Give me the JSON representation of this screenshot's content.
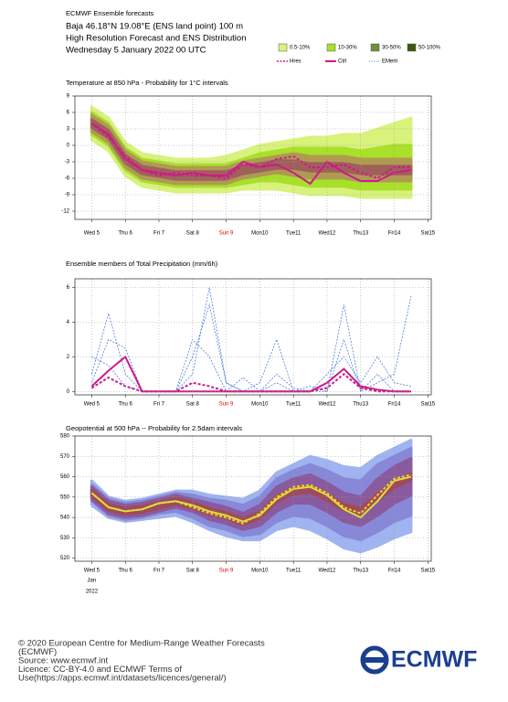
{
  "header": {
    "source": "ECMWF Ensemble forecasts",
    "location": "Baja 46.18°N 19.08°E (ENS land point) 100 m",
    "subtitle": "High Resolution Forecast and ENS Distribution",
    "date": "Wednesday 5 January 2022 00 UTC"
  },
  "legend": [
    {
      "label": "0.5-10%",
      "color": "#d8f27c",
      "kind": "box"
    },
    {
      "label": "10-30%",
      "color": "#a8e02a",
      "kind": "box"
    },
    {
      "label": "30-50%",
      "color": "#6f8f3a",
      "kind": "box"
    },
    {
      "label": "50-100%",
      "color": "#3d5a0c",
      "kind": "box"
    },
    {
      "label": "Hres",
      "color": "#cc1a8a",
      "kind": "dash"
    },
    {
      "label": "Ctrl",
      "color": "#cc1a8a",
      "kind": "solid"
    },
    {
      "label": "EMem",
      "color": "#8aa6e0",
      "kind": "dot"
    }
  ],
  "chart_data": [
    {
      "type": "line",
      "title": "Temperature at 850 hPa - Probability for 1°C intervals",
      "x": [
        0,
        0.5,
        1,
        1.5,
        2,
        2.5,
        3,
        3.5,
        4,
        4.5,
        5,
        5.5,
        6,
        6.5,
        7,
        7.5,
        8,
        8.5,
        9,
        9.5
      ],
      "xlim": [
        -0.5,
        10.1
      ],
      "xticks": [
        {
          "value": 0,
          "label": "Wed 5"
        },
        {
          "value": 1,
          "label": "Thu 6"
        },
        {
          "value": 2,
          "label": "Fri 7"
        },
        {
          "value": 3,
          "label": "Sat 8"
        },
        {
          "value": 4,
          "label": "Sun 9",
          "color": "#e00000"
        },
        {
          "value": 5,
          "label": "Mon10"
        },
        {
          "value": 6,
          "label": "Tue11"
        },
        {
          "value": 7,
          "label": "Wed12"
        },
        {
          "value": 8,
          "label": "Thu13"
        },
        {
          "value": 9,
          "label": "Fri14"
        },
        {
          "value": 10,
          "label": "Sat15"
        }
      ],
      "ylim": [
        -13.5,
        9
      ],
      "yticks": [
        9,
        6,
        3,
        0,
        -3,
        -6,
        -9,
        -12
      ],
      "grid": true,
      "bands": [
        {
          "name": "0.5-10%",
          "color": "#d8f27c",
          "low": [
            1,
            -1,
            -5.5,
            -7.5,
            -8,
            -8.5,
            -8.5,
            -8.5,
            -8.5,
            -8,
            -8,
            -8,
            -8.5,
            -9,
            -9,
            -9,
            -9.5,
            -9.5,
            -9.5,
            -9.5
          ],
          "high": [
            7,
            5,
            0.5,
            -1.5,
            -2,
            -2.5,
            -2.5,
            -2.5,
            -2,
            -1,
            0,
            0.5,
            1,
            1.5,
            1.5,
            2,
            2,
            3,
            4,
            5
          ]
        },
        {
          "name": "10-30%",
          "color": "#a8e02a",
          "low": [
            2,
            0,
            -4.5,
            -6.5,
            -7,
            -7.5,
            -7.5,
            -7.5,
            -7.5,
            -7,
            -6.5,
            -6.5,
            -7,
            -7.5,
            -7.5,
            -7.5,
            -8,
            -8,
            -8,
            -8
          ],
          "high": [
            6,
            4,
            -0.5,
            -2.5,
            -3,
            -3.5,
            -3.5,
            -3.5,
            -3.5,
            -2.5,
            -1.5,
            -1,
            -0.5,
            -0.5,
            -0.5,
            -0.5,
            -1,
            -0.5,
            0,
            0
          ]
        },
        {
          "name": "30-50%",
          "color": "#b09a50",
          "low": [
            2.5,
            0.5,
            -4,
            -6,
            -6.5,
            -7,
            -7,
            -7,
            -7,
            -6,
            -5.5,
            -5,
            -5.5,
            -6,
            -6,
            -6,
            -6.5,
            -6.5,
            -6.5,
            -6.5
          ],
          "high": [
            5.5,
            3.5,
            -1,
            -3,
            -3.5,
            -4,
            -4,
            -4,
            -4,
            -3,
            -2.5,
            -2,
            -1.5,
            -2,
            -2,
            -2,
            -2.5,
            -2.5,
            -2.5,
            -2.5
          ]
        },
        {
          "name": "50-100%",
          "color": "#a0605a",
          "low": [
            3.3,
            1.3,
            -3.2,
            -5.2,
            -5.7,
            -6.2,
            -6.2,
            -6.2,
            -6.2,
            -5.2,
            -4.7,
            -4.2,
            -4.2,
            -4.7,
            -4.7,
            -4.7,
            -5.2,
            -5.2,
            -5.2,
            -5.2
          ],
          "high": [
            4.7,
            2.7,
            -1.8,
            -3.8,
            -4.3,
            -4.8,
            -4.8,
            -4.8,
            -4.8,
            -3.8,
            -3.3,
            -2.8,
            -2.8,
            -3.3,
            -3.3,
            -3.3,
            -3.8,
            -3.8,
            -3.8,
            -3.8
          ]
        }
      ],
      "series": [
        {
          "name": "Hres",
          "color": "#cc1a8a",
          "dash": true,
          "values": [
            4,
            1.5,
            -2,
            -4.5,
            -5.5,
            -5,
            -5.5,
            -5.5,
            -6,
            -3.5,
            -4,
            -2.5,
            -2,
            -4,
            -4,
            -3.5,
            -5,
            -6,
            -4,
            -4
          ]
        },
        {
          "name": "Ctrl",
          "color": "#cc1a8a",
          "dash": false,
          "values": [
            4,
            2,
            -2.5,
            -4.5,
            -5,
            -5.5,
            -5,
            -5.5,
            -5.5,
            -3,
            -4,
            -3.5,
            -5,
            -7,
            -3,
            -5,
            -6.5,
            -6.5,
            -5,
            -4.5
          ]
        }
      ]
    },
    {
      "type": "line",
      "title": "Ensemble members of Total Precipitation (mm/6h)",
      "x": [
        0,
        0.5,
        1,
        1.5,
        2,
        2.5,
        3,
        3.5,
        4,
        4.5,
        5,
        5.5,
        6,
        6.5,
        7,
        7.5,
        8,
        8.5,
        9,
        9.5
      ],
      "xlim": [
        -0.5,
        10.1
      ],
      "xticks": [
        {
          "value": 0,
          "label": "Wed 5"
        },
        {
          "value": 1,
          "label": "Thu 6"
        },
        {
          "value": 2,
          "label": "Fri 7"
        },
        {
          "value": 3,
          "label": "Sat 8"
        },
        {
          "value": 4,
          "label": "Sun 9",
          "color": "#e00000"
        },
        {
          "value": 5,
          "label": "Mon10"
        },
        {
          "value": 6,
          "label": "Tue11"
        },
        {
          "value": 7,
          "label": "Wed12"
        },
        {
          "value": 8,
          "label": "Thu13"
        },
        {
          "value": 9,
          "label": "Fri14"
        },
        {
          "value": 10,
          "label": "Sat15"
        }
      ],
      "ylim": [
        -0.2,
        6.5
      ],
      "yticks": [
        6,
        4,
        2,
        0
      ],
      "grid": true,
      "bands": [],
      "series": [
        {
          "name": "EMem",
          "color": "#4a7de0",
          "dash": true,
          "values": [
            1,
            4.5,
            1,
            0,
            0,
            0,
            2,
            5,
            0.5,
            0,
            0.5,
            3,
            0,
            0.3,
            0,
            5,
            0,
            1,
            0,
            0
          ]
        },
        {
          "name": "EMem",
          "color": "#4a7de0",
          "dash": true,
          "values": [
            0.5,
            3,
            2.5,
            0,
            0,
            0,
            1,
            6,
            0.5,
            0,
            0,
            0.5,
            0,
            0,
            1,
            2,
            0.5,
            2,
            0.5,
            0.3
          ]
        },
        {
          "name": "EMem",
          "color": "#4a7de0",
          "dash": true,
          "values": [
            2,
            1.5,
            0.3,
            0,
            0,
            0,
            3,
            2,
            0,
            0.8,
            0,
            1,
            0.2,
            0,
            0,
            3,
            0,
            0.5,
            1,
            5.5
          ]
        },
        {
          "name": "Hres",
          "color": "#cc1a8a",
          "dash": true,
          "values": [
            0.2,
            0.8,
            0.3,
            0,
            0,
            0,
            0.5,
            0.3,
            0,
            0,
            0,
            0,
            0,
            0,
            0.2,
            1,
            0.2,
            0,
            0,
            0
          ]
        },
        {
          "name": "Ctrl",
          "color": "#cc1a8a",
          "dash": false,
          "values": [
            0.3,
            1.2,
            2,
            0,
            0,
            0,
            0,
            0,
            0,
            0,
            0,
            0,
            0,
            0,
            0.5,
            1.3,
            0.3,
            0.1,
            0,
            0
          ]
        }
      ]
    },
    {
      "type": "line",
      "title": "Geopotential at 500 hPa -- Probability for 2.5dam intervals",
      "x": [
        0,
        0.5,
        1,
        1.5,
        2,
        2.5,
        3,
        3.5,
        4,
        4.5,
        5,
        5.5,
        6,
        6.5,
        7,
        7.5,
        8,
        8.5,
        9,
        9.5
      ],
      "xlim": [
        -0.5,
        10.1
      ],
      "xticks": [
        {
          "value": 0,
          "label": "Wed 5"
        },
        {
          "value": 1,
          "label": "Thu 6"
        },
        {
          "value": 2,
          "label": "Fri 7"
        },
        {
          "value": 3,
          "label": "Sat 8"
        },
        {
          "value": 4,
          "label": "Sun 9",
          "color": "#e00000"
        },
        {
          "value": 5,
          "label": "Mon10"
        },
        {
          "value": 6,
          "label": "Tue11"
        },
        {
          "value": 7,
          "label": "Wed12"
        },
        {
          "value": 8,
          "label": "Thu13"
        },
        {
          "value": 9,
          "label": "Fri14"
        },
        {
          "value": 10,
          "label": "Sat15"
        }
      ],
      "date_note": [
        "Jan",
        "2022"
      ],
      "ylim": [
        518.5,
        580
      ],
      "yticks": [
        580,
        570,
        560,
        550,
        540,
        530,
        520
      ],
      "grid": true,
      "bands": [
        {
          "name": "0.5-10%",
          "color": "#9fb4f0",
          "low": [
            546,
            540,
            538,
            539,
            540,
            541,
            538,
            534,
            531,
            529,
            529,
            534,
            536,
            534,
            530,
            525,
            523,
            526,
            530,
            533
          ],
          "high": [
            558,
            550,
            548,
            549,
            551,
            553,
            553,
            551,
            550,
            549,
            553,
            562,
            566,
            570,
            568,
            565,
            564,
            570,
            574,
            578
          ]
        },
        {
          "name": "10-30%",
          "color": "#8888d8",
          "low": [
            548,
            541,
            539,
            540,
            542,
            543,
            540,
            536,
            534,
            531,
            532,
            538,
            541,
            540,
            536,
            531,
            529,
            533,
            538,
            541
          ],
          "high": [
            556,
            549,
            547,
            548,
            550,
            552,
            551,
            549,
            548,
            546,
            550,
            559,
            563,
            566,
            563,
            559,
            558,
            566,
            570,
            574
          ]
        },
        {
          "name": "30-50%",
          "color": "#8a5a9e",
          "low": [
            549,
            542,
            540,
            541,
            543,
            545,
            543,
            539,
            537,
            534,
            536,
            543,
            547,
            547,
            543,
            538,
            536,
            541,
            547,
            551
          ],
          "high": [
            555,
            548,
            546,
            547,
            549,
            551,
            549,
            547,
            545,
            542,
            546,
            555,
            559,
            561,
            557,
            552,
            550,
            559,
            565,
            569
          ]
        },
        {
          "name": "50-100%",
          "color": "#a04a5a",
          "low": [
            550.5,
            543.5,
            541.5,
            542.5,
            544.5,
            546.5,
            544.5,
            541.5,
            539.5,
            536.5,
            539.5,
            547.5,
            551.5,
            552.5,
            548.5,
            543.5,
            541.5,
            548.5,
            554.5,
            558.5
          ],
          "high": [
            553.5,
            546.5,
            544.5,
            545.5,
            547.5,
            549.5,
            547.5,
            544.5,
            542.5,
            539.5,
            542.5,
            550.5,
            554.5,
            555.5,
            551.5,
            546.5,
            544.5,
            551.5,
            557.5,
            561.5
          ]
        }
      ],
      "series": [
        {
          "name": "Hres",
          "color": "#f0d020",
          "dash": true,
          "values": [
            552,
            545,
            543,
            544,
            547,
            548,
            545,
            542,
            540,
            537,
            542,
            550,
            555,
            556,
            552,
            545,
            542,
            551,
            559,
            561
          ]
        },
        {
          "name": "Ctrl",
          "color": "#d8e040",
          "dash": false,
          "values": [
            552,
            545,
            543,
            544,
            547,
            548,
            546,
            543,
            541,
            538,
            541,
            549,
            554,
            555,
            551,
            544,
            540,
            548,
            558,
            560
          ]
        }
      ]
    }
  ],
  "footer": {
    "lines": [
      "© 2020 European Centre for Medium-Range Weather Forecasts",
      "(ECMWF)",
      "Source: www.ecmwf.int",
      "Licence: CC-BY-4.0 and ECMWF Terms of",
      "Use(https://apps.ecmwf.int/datasets/licences/general/)"
    ],
    "logo": "ECMWF"
  }
}
